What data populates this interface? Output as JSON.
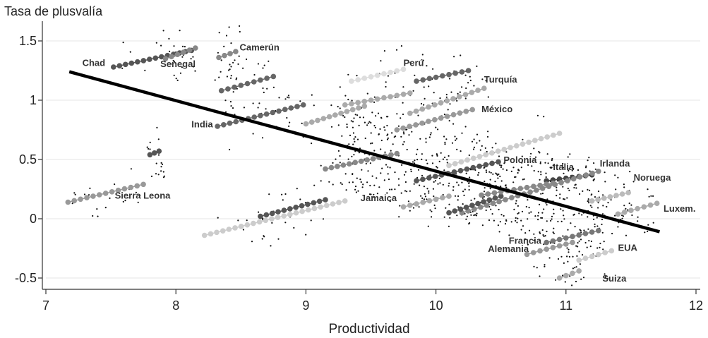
{
  "chart_data": {
    "type": "scatter",
    "title": "",
    "xlabel": "Productividad",
    "ylabel": "Tasa de plusvalía",
    "xlim": [
      7,
      12
    ],
    "ylim": [
      -0.55,
      1.65
    ],
    "x_ticks": [
      "7",
      "8",
      "9",
      "10",
      "11",
      "12"
    ],
    "y_ticks": [
      "1.5",
      "1",
      "0.5",
      "0",
      "-0.5"
    ],
    "grid": true,
    "fit_line": {
      "x": [
        7.18,
        11.72
      ],
      "y": [
        1.24,
        -0.11
      ]
    },
    "country_series": [
      {
        "name": "Chad",
        "x": [
          7.52,
          8.12
        ],
        "y": [
          1.28,
          1.42
        ],
        "color": "#555555"
      },
      {
        "name": "Senegal",
        "x": [
          7.92,
          8.15
        ],
        "y": [
          1.35,
          1.44
        ],
        "color": "#888888"
      },
      {
        "name": "Camerún",
        "x": [
          8.33,
          8.46
        ],
        "y": [
          1.36,
          1.41
        ],
        "color": "#888888"
      },
      {
        "name": "Perú",
        "x": [
          9.35,
          9.75
        ],
        "y": [
          1.16,
          1.26
        ],
        "color": "#dddddd"
      },
      {
        "name": "Turquía",
        "x": [
          9.8,
          10.37
        ],
        "y": [
          0.89,
          1.1
        ],
        "color": "#aaaaaa"
      },
      {
        "name": "India",
        "x": [
          8.32,
          8.98
        ],
        "y": [
          0.78,
          0.96
        ],
        "color": "#666666"
      },
      {
        "name": "México",
        "x": [
          9.7,
          10.28
        ],
        "y": [
          0.75,
          0.92
        ],
        "color": "#999999"
      },
      {
        "name": "Polonia",
        "x": [
          9.85,
          10.48
        ],
        "y": [
          0.32,
          0.48
        ],
        "color": "#555555"
      },
      {
        "name": "Sierra Leona",
        "x": [
          7.17,
          7.75
        ],
        "y": [
          0.14,
          0.29
        ],
        "color": "#999999"
      },
      {
        "name": "Jamaica",
        "x": [
          9.75,
          10.1
        ],
        "y": [
          0.1,
          0.19
        ],
        "color": "#aaaaaa"
      },
      {
        "name": "Italia",
        "x": [
          10.85,
          11.2
        ],
        "y": [
          0.32,
          0.37
        ],
        "color": "#444444"
      },
      {
        "name": "Irlanda",
        "x": [
          10.2,
          11.25
        ],
        "y": [
          0.05,
          0.4
        ],
        "color": "#888888"
      },
      {
        "name": "Noruega",
        "x": [
          11.2,
          11.48
        ],
        "y": [
          0.15,
          0.22
        ],
        "color": "#bbbbbb"
      },
      {
        "name": "Luxem.",
        "x": [
          11.4,
          11.7
        ],
        "y": [
          0.04,
          0.13
        ],
        "color": "#aaaaaa"
      },
      {
        "name": "Francia",
        "x": [
          10.85,
          11.25
        ],
        "y": [
          -0.2,
          -0.1
        ],
        "color": "#777777"
      },
      {
        "name": "Alemania",
        "x": [
          10.7,
          11.05
        ],
        "y": [
          -0.3,
          -0.2
        ],
        "color": "#999999"
      },
      {
        "name": "EUA",
        "x": [
          11.1,
          11.35
        ],
        "y": [
          -0.35,
          -0.27
        ],
        "color": "#cccccc"
      },
      {
        "name": "Suiza",
        "x": [
          10.95,
          11.1
        ],
        "y": [
          -0.5,
          -0.44
        ],
        "color": "#aaaaaa"
      },
      {
        "name": "",
        "x": [
          8.65,
          9.15
        ],
        "y": [
          0.02,
          0.16
        ],
        "color": "#555555"
      },
      {
        "name": "",
        "x": [
          8.22,
          9.3
        ],
        "y": [
          -0.14,
          0.15
        ],
        "color": "#cccccc"
      },
      {
        "name": "",
        "x": [
          9.15,
          9.7
        ],
        "y": [
          0.42,
          0.55
        ],
        "color": "#888888"
      },
      {
        "name": "",
        "x": [
          10.1,
          10.95
        ],
        "y": [
          0.45,
          0.72
        ],
        "color": "#cccccc"
      },
      {
        "name": "",
        "x": [
          8.35,
          8.75
        ],
        "y": [
          1.08,
          1.2
        ],
        "color": "#666666"
      },
      {
        "name": "",
        "x": [
          9.0,
          9.45
        ],
        "y": [
          0.8,
          0.95
        ],
        "color": "#aaaaaa"
      },
      {
        "name": "",
        "x": [
          9.3,
          9.8
        ],
        "y": [
          0.96,
          1.06
        ],
        "color": "#aaaaaa"
      },
      {
        "name": "",
        "x": [
          9.85,
          10.25
        ],
        "y": [
          1.16,
          1.25
        ],
        "color": "#666666"
      },
      {
        "name": "",
        "x": [
          10.1,
          10.5
        ],
        "y": [
          0.05,
          0.19
        ],
        "color": "#555555"
      },
      {
        "name": "",
        "x": [
          10.35,
          10.9
        ],
        "y": [
          0.2,
          0.3
        ],
        "color": "#888888"
      },
      {
        "name": "",
        "x": [
          7.8,
          7.87
        ],
        "y": [
          0.54,
          0.57
        ],
        "color": "#555555"
      }
    ],
    "country_labels": [
      {
        "text": "Chad",
        "x": 7.28,
        "y": 1.29,
        "anchor": "start"
      },
      {
        "text": "Senegal",
        "x": 7.88,
        "y": 1.28,
        "anchor": "start"
      },
      {
        "text": "Camerún",
        "x": 8.49,
        "y": 1.42,
        "anchor": "start"
      },
      {
        "text": "Perú",
        "x": 9.75,
        "y": 1.29,
        "anchor": "start"
      },
      {
        "text": "Turquía",
        "x": 10.37,
        "y": 1.15,
        "anchor": "start"
      },
      {
        "text": "India",
        "x": 8.12,
        "y": 0.77,
        "anchor": "start"
      },
      {
        "text": "México",
        "x": 10.35,
        "y": 0.9,
        "anchor": "start"
      },
      {
        "text": "Polonia",
        "x": 10.52,
        "y": 0.47,
        "anchor": "start"
      },
      {
        "text": "Sierra Leona",
        "x": 7.53,
        "y": 0.17,
        "anchor": "start"
      },
      {
        "text": "Jamaica",
        "x": 9.42,
        "y": 0.15,
        "anchor": "start"
      },
      {
        "text": "Italia",
        "x": 10.9,
        "y": 0.41,
        "anchor": "start"
      },
      {
        "text": "Irlanda",
        "x": 11.26,
        "y": 0.44,
        "anchor": "start"
      },
      {
        "text": "Noruega",
        "x": 11.52,
        "y": 0.32,
        "anchor": "start"
      },
      {
        "text": "Luxem.",
        "x": 11.75,
        "y": 0.06,
        "anchor": "start"
      },
      {
        "text": "Francia",
        "x": 10.56,
        "y": -0.21,
        "anchor": "start"
      },
      {
        "text": "Alemania",
        "x": 10.4,
        "y": -0.28,
        "anchor": "start"
      },
      {
        "text": "EUA",
        "x": 11.4,
        "y": -0.27,
        "anchor": "start"
      },
      {
        "text": "Suiza",
        "x": 11.28,
        "y": -0.53,
        "anchor": "start"
      }
    ]
  }
}
